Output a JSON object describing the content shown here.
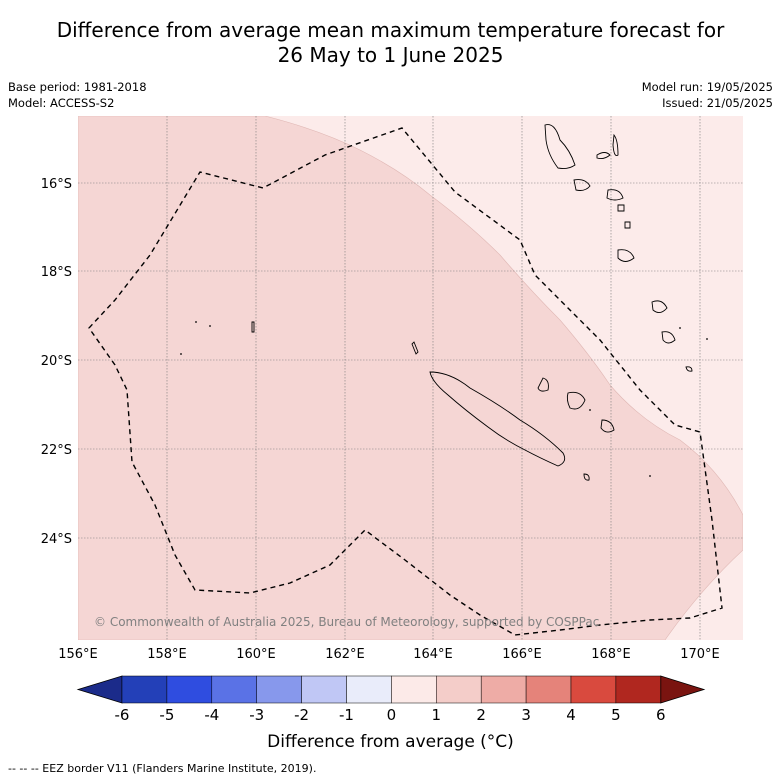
{
  "title_line1": "Difference from average mean maximum temperature forecast for",
  "title_line2": "26 May to 1 June 2025",
  "base_period": "Base period: 1981-2018",
  "model": "Model: ACCESS-S2",
  "model_run": "Model run: 19/05/2025",
  "issued": "Issued: 21/05/2025",
  "copyright": "© Commonwealth of Australia 2025, Bureau of Meteorology, supported by COSPPac",
  "map": {
    "lon_labels": [
      "156°E",
      "158°E",
      "160°E",
      "162°E",
      "164°E",
      "166°E",
      "168°E",
      "170°E"
    ],
    "lat_labels": [
      "16°S",
      "18°S",
      "20°S",
      "22°S",
      "24°S"
    ]
  },
  "colorbar": {
    "title": "Difference from average (°C)",
    "ticks": [
      "-6",
      "-5",
      "-4",
      "-3",
      "-2",
      "-1",
      "0",
      "1",
      "2",
      "3",
      "4",
      "5",
      "6"
    ],
    "colors": [
      "#1b2b8a",
      "#2340b8",
      "#2f4de0",
      "#5a72e6",
      "#8798ec",
      "#c0c7f5",
      "#e9ecfa",
      "#fceae8",
      "#f4cdc9",
      "#eeaca6",
      "#e5837a",
      "#d94a3e",
      "#b0271f",
      "#7a1410"
    ]
  },
  "fill_colors": {
    "range_1_2": "#f5d6d4",
    "range_0_1": "#fcebea"
  },
  "footer": "-- -- -- EEZ border V11 (Flanders Marine Institute, 2019)."
}
